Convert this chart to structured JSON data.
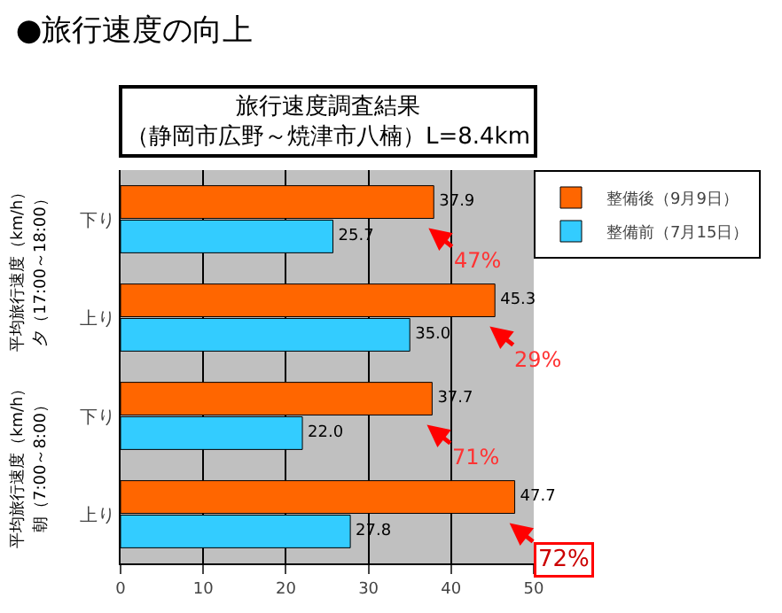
{
  "chart_data": {
    "type": "bar",
    "orientation": "horizontal",
    "title": "●旅行速度の向上",
    "subtitle": "旅行速度調査結果",
    "categories": [
      "下り",
      "上り",
      "下り",
      "上り"
    ],
    "series": [
      {
        "name": "整備後（9月9日）",
        "color": "#ff6600",
        "values": [
          37.9,
          45.3,
          37.7,
          47.7
        ],
        "value_labels": [
          "37.9",
          "45.3",
          "37.7",
          "47.7"
        ]
      },
      {
        "name": "整備前（7月15日）",
        "color": "#33ccff",
        "values": [
          25.7,
          35.0,
          22.0,
          27.8
        ],
        "value_labels": [
          "25.7",
          "35.0",
          "22.0",
          "27.8"
        ]
      }
    ],
    "xlim": [
      0,
      50
    ],
    "xticks": [
      0,
      10,
      20,
      30,
      40,
      50
    ],
    "grid": "x",
    "legend": "top right",
    "annotations": [
      "（静岡市広野～焼津市八楠）L=8.4km",
      "平均旅行速度（km/h）",
      "夕（17:00～18:00）",
      "平均旅行速度（km/h）",
      "朝（7:00～8:00）",
      "47%",
      "29%",
      "71%",
      "72%"
    ]
  }
}
